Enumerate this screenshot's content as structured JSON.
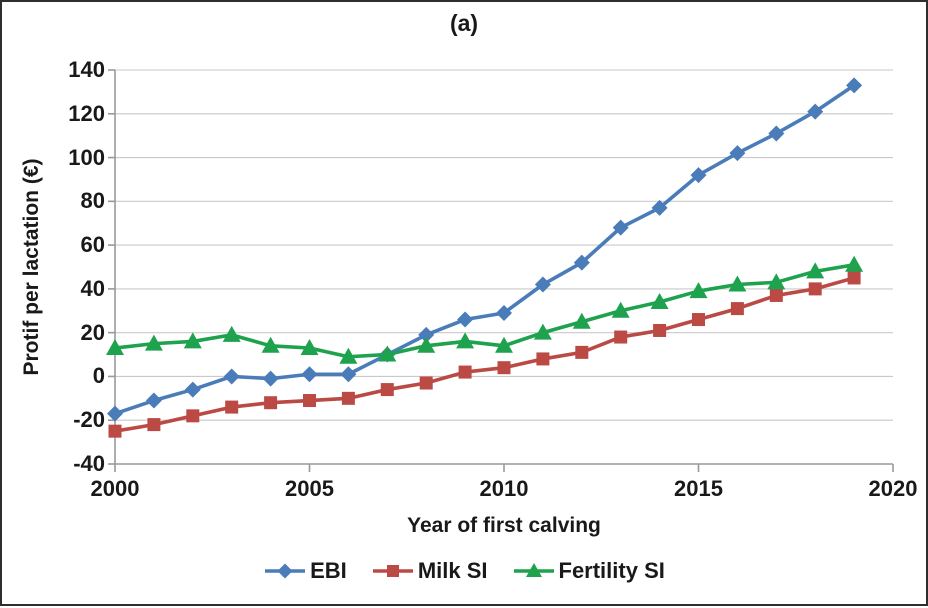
{
  "chart_data": {
    "type": "line",
    "title": "(a)",
    "xlabel": "Year of first calving",
    "ylabel": "Protif per lactation (€)",
    "x": [
      2000,
      2001,
      2002,
      2003,
      2004,
      2005,
      2006,
      2007,
      2008,
      2009,
      2010,
      2011,
      2012,
      2013,
      2014,
      2015,
      2016,
      2017,
      2018,
      2019
    ],
    "series": [
      {
        "name": "EBI",
        "marker": "diamond-icon",
        "color": "#4A7CBA",
        "values": [
          -17,
          -11,
          -6,
          0,
          -1,
          1,
          1,
          10,
          19,
          26,
          29,
          42,
          52,
          68,
          77,
          92,
          102,
          111,
          121,
          133
        ]
      },
      {
        "name": "Milk SI",
        "marker": "square-icon",
        "color": "#BB4A45",
        "values": [
          -25,
          -22,
          -18,
          -14,
          -12,
          -11,
          -10,
          -6,
          -3,
          2,
          4,
          8,
          11,
          18,
          21,
          26,
          31,
          37,
          40,
          45
        ]
      },
      {
        "name": "Fertility SI",
        "marker": "triangle-icon",
        "color": "#1EA24D",
        "values": [
          13,
          15,
          16,
          19,
          14,
          13,
          9,
          10,
          14,
          16,
          14,
          20,
          25,
          30,
          34,
          39,
          42,
          43,
          48,
          51
        ]
      }
    ],
    "xlim": [
      2000,
      2020
    ],
    "ylim": [
      -40,
      140
    ],
    "xticks": [
      2000,
      2005,
      2010,
      2015,
      2020
    ],
    "yticks": [
      -40,
      -20,
      0,
      20,
      40,
      60,
      80,
      100,
      120,
      140
    ],
    "grid": "horizontal only",
    "grid_color": "#C9C9C9",
    "axis_color": "#999999",
    "text_color": "#191919",
    "legend_position": "bottom"
  }
}
